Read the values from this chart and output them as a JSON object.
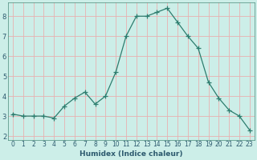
{
  "x": [
    0,
    1,
    2,
    3,
    4,
    5,
    6,
    7,
    8,
    9,
    10,
    11,
    12,
    13,
    14,
    15,
    16,
    17,
    18,
    19,
    20,
    21,
    22,
    23
  ],
  "y": [
    3.1,
    3.0,
    3.0,
    3.0,
    2.9,
    3.5,
    3.9,
    4.2,
    3.6,
    4.0,
    5.2,
    7.0,
    8.0,
    8.0,
    8.2,
    8.4,
    7.7,
    7.0,
    6.4,
    4.7,
    3.9,
    3.3,
    3.0,
    2.3
  ],
  "xlabel": "Humidex (Indice chaleur)",
  "xlim": [
    -0.5,
    23.5
  ],
  "ylim": [
    1.8,
    8.7
  ],
  "yticks": [
    2,
    3,
    4,
    5,
    6,
    7,
    8
  ],
  "xticks": [
    0,
    1,
    2,
    3,
    4,
    5,
    6,
    7,
    8,
    9,
    10,
    11,
    12,
    13,
    14,
    15,
    16,
    17,
    18,
    19,
    20,
    21,
    22,
    23
  ],
  "line_color": "#2d7d6e",
  "bg_color": "#cceee8",
  "grid_color": "#e8b0b0",
  "xlabel_color": "#2d5a6e",
  "tick_color": "#2d5a6e"
}
